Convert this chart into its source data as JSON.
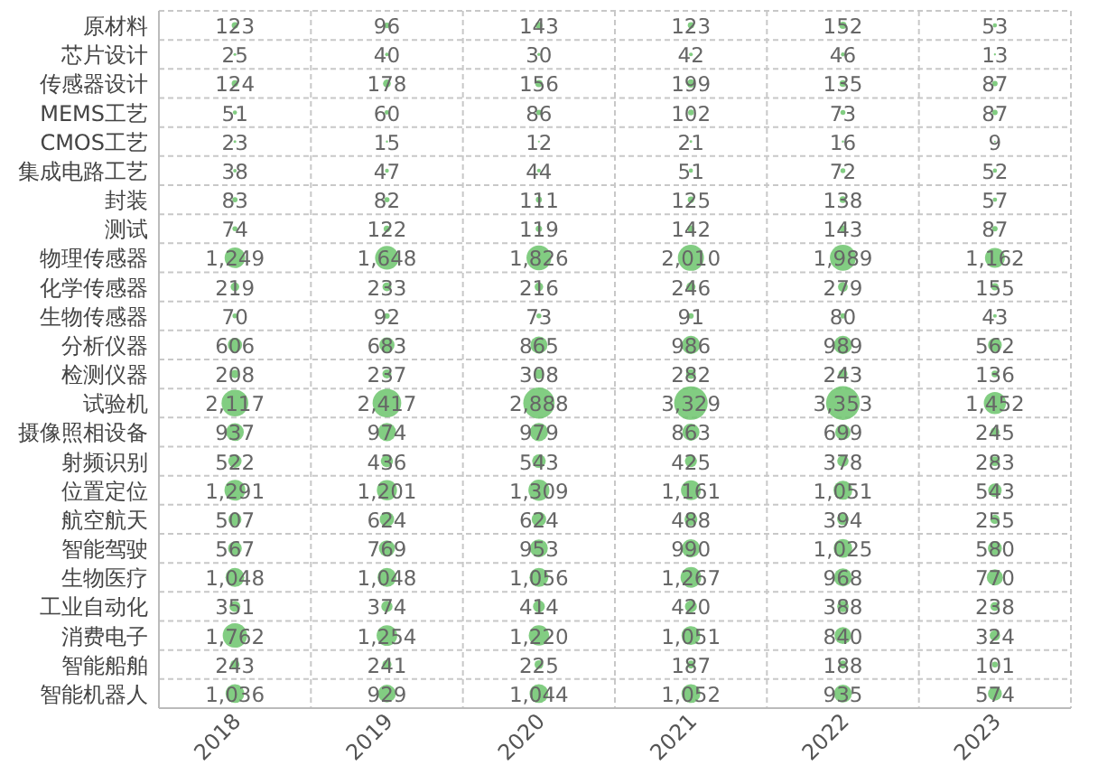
{
  "chart_data": {
    "type": "heatmap",
    "color": "#6cc46c",
    "grid": true,
    "categories": [
      "2018",
      "2019",
      "2020",
      "2021",
      "2022",
      "2023"
    ],
    "y_categories": [
      "原材料",
      "芯片设计",
      "传感器设计",
      "MEMS工艺",
      "CMOS工艺",
      "集成电路工艺",
      "封装",
      "测试",
      "物理传感器",
      "化学传感器",
      "生物传感器",
      "分析仪器",
      "检测仪器",
      "试验机",
      "摄像照相设备",
      "射频识别",
      "位置定位",
      "航空航天",
      "智能驾驶",
      "生物医疗",
      "工业自动化",
      "消费电子",
      "智能船舶",
      "智能机器人"
    ],
    "cells": [
      [
        123,
        96,
        143,
        123,
        152,
        53
      ],
      [
        25,
        40,
        30,
        42,
        46,
        13
      ],
      [
        124,
        178,
        156,
        199,
        135,
        87
      ],
      [
        51,
        60,
        86,
        102,
        73,
        87
      ],
      [
        23,
        15,
        12,
        21,
        16,
        9
      ],
      [
        38,
        47,
        44,
        51,
        72,
        52
      ],
      [
        83,
        82,
        111,
        125,
        138,
        57
      ],
      [
        74,
        122,
        119,
        142,
        143,
        87
      ],
      [
        1249,
        1648,
        1826,
        2010,
        1989,
        1162
      ],
      [
        219,
        233,
        216,
        246,
        279,
        155
      ],
      [
        70,
        92,
        73,
        91,
        80,
        43
      ],
      [
        606,
        683,
        865,
        986,
        989,
        562
      ],
      [
        208,
        237,
        308,
        282,
        243,
        136
      ],
      [
        2117,
        2417,
        2888,
        3329,
        3353,
        1452
      ],
      [
        937,
        974,
        979,
        863,
        699,
        245
      ],
      [
        522,
        436,
        543,
        425,
        378,
        283
      ],
      [
        1291,
        1201,
        1309,
        1161,
        1051,
        543
      ],
      [
        507,
        624,
        624,
        488,
        394,
        255
      ],
      [
        567,
        769,
        953,
        990,
        1025,
        580
      ],
      [
        1048,
        1048,
        1056,
        1267,
        968,
        770
      ],
      [
        351,
        374,
        414,
        420,
        388,
        238
      ],
      [
        1762,
        1254,
        1220,
        1051,
        840,
        324
      ],
      [
        243,
        241,
        225,
        187,
        188,
        101
      ],
      [
        1036,
        929,
        1044,
        1052,
        935,
        574
      ]
    ],
    "cell_labels": [
      [
        "123",
        "96",
        "143",
        "123",
        "152",
        "53"
      ],
      [
        "25",
        "40",
        "30",
        "42",
        "46",
        "13"
      ],
      [
        "124",
        "178",
        "156",
        "199",
        "135",
        "87"
      ],
      [
        "51",
        "60",
        "86",
        "102",
        "73",
        "87"
      ],
      [
        "23",
        "15",
        "12",
        "21",
        "16",
        "9"
      ],
      [
        "38",
        "47",
        "44",
        "51",
        "72",
        "52"
      ],
      [
        "83",
        "82",
        "111",
        "125",
        "138",
        "57"
      ],
      [
        "74",
        "122",
        "119",
        "142",
        "143",
        "87"
      ],
      [
        "1,249",
        "1,648",
        "1,826",
        "2,010",
        "1,989",
        "1,162"
      ],
      [
        "219",
        "233",
        "216",
        "246",
        "279",
        "155"
      ],
      [
        "70",
        "92",
        "73",
        "91",
        "80",
        "43"
      ],
      [
        "606",
        "683",
        "865",
        "986",
        "989",
        "562"
      ],
      [
        "208",
        "237",
        "308",
        "282",
        "243",
        "136"
      ],
      [
        "2,117",
        "2,417",
        "2,888",
        "3,329",
        "3,353",
        "1,452"
      ],
      [
        "937",
        "974",
        "979",
        "863",
        "699",
        "245"
      ],
      [
        "522",
        "436",
        "543",
        "425",
        "378",
        "283"
      ],
      [
        "1,291",
        "1,201",
        "1,309",
        "1,161",
        "1,051",
        "543"
      ],
      [
        "507",
        "624",
        "624",
        "488",
        "394",
        "255"
      ],
      [
        "567",
        "769",
        "953",
        "990",
        "1,025",
        "580"
      ],
      [
        "1,048",
        "1,048",
        "1,056",
        "1,267",
        "968",
        "770"
      ],
      [
        "351",
        "374",
        "414",
        "420",
        "388",
        "238"
      ],
      [
        "1,762",
        "1,254",
        "1,220",
        "1,051",
        "840",
        "324"
      ],
      [
        "243",
        "241",
        "225",
        "187",
        "188",
        "101"
      ],
      [
        "1,036",
        "929",
        "1,044",
        "1,052",
        "935",
        "574"
      ]
    ]
  }
}
